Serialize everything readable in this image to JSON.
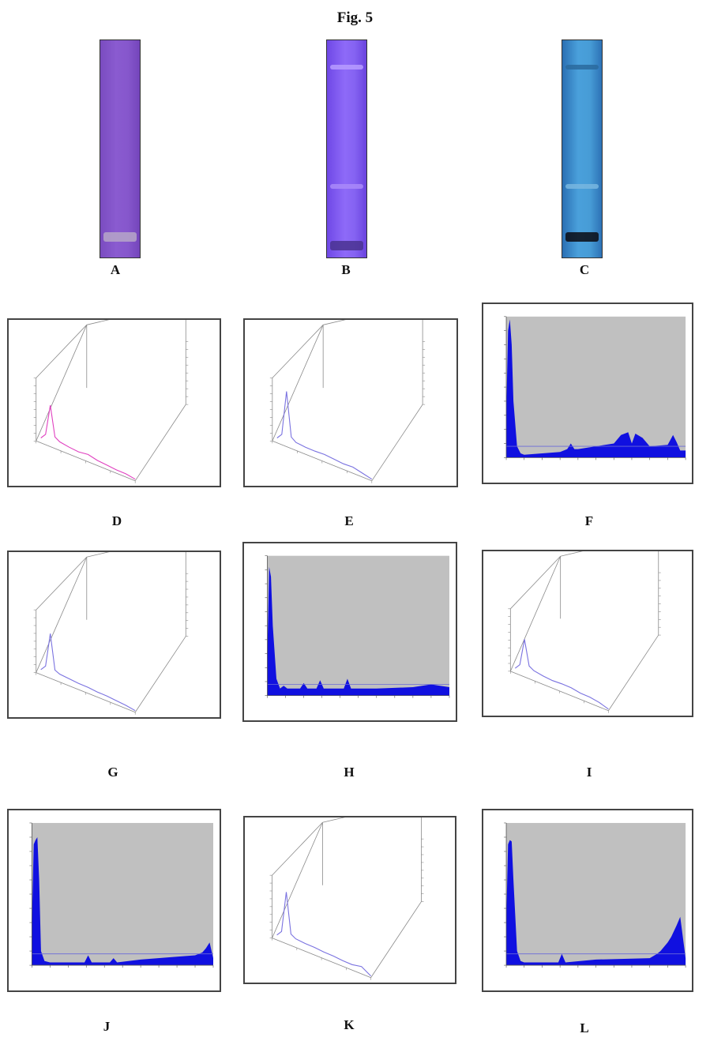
{
  "figure_title": "Fig. 5",
  "plates": [
    {
      "id": "A",
      "label": "A",
      "background": "#8657cc",
      "bands": [
        {
          "y": 0.9,
          "color": "#b6a6c8"
        }
      ]
    },
    {
      "id": "B",
      "label": "B",
      "background": "#8563f2",
      "bands": [
        {
          "y": 0.13,
          "color": "#b79cff"
        },
        {
          "y": 0.68,
          "color": "#a98af9"
        },
        {
          "y": 0.94,
          "color": "#4a3290"
        }
      ]
    },
    {
      "id": "C",
      "label": "C",
      "background": "#479cd6",
      "bands": [
        {
          "y": 0.13,
          "color": "#2a6a9e"
        },
        {
          "y": 0.68,
          "color": "#78b6df"
        },
        {
          "y": 0.9,
          "color": "#0b0b12"
        }
      ]
    }
  ],
  "panel_labels": {
    "D": "D",
    "E": "E",
    "F": "F",
    "G": "G",
    "H": "H",
    "I": "I",
    "J": "J",
    "K": "K",
    "L": "L"
  },
  "colors": {
    "trace_magenta": "#e040c0",
    "trace_blue": "#7a72e0",
    "peak_fill": "#1010e0",
    "chart_background": "#c0c0c0"
  },
  "chart_data": [
    {
      "panel": "D",
      "type": "line",
      "style": "3d-scan",
      "series": [
        {
          "color": "#e040c0",
          "x": [
            0.0,
            0.05,
            0.1,
            0.15,
            0.2,
            0.3,
            0.4,
            0.5,
            0.6,
            0.7,
            0.8,
            0.9,
            1.0
          ],
          "values": [
            0.02,
            0.1,
            0.55,
            0.12,
            0.08,
            0.06,
            0.05,
            0.07,
            0.04,
            0.03,
            0.02,
            0.02,
            0.0
          ]
        }
      ]
    },
    {
      "panel": "E",
      "type": "line",
      "style": "3d-scan",
      "series": [
        {
          "color": "#7a72e0",
          "x": [
            0.0,
            0.05,
            0.1,
            0.15,
            0.2,
            0.3,
            0.4,
            0.5,
            0.6,
            0.7,
            0.8,
            0.9,
            1.0
          ],
          "values": [
            0.02,
            0.1,
            0.75,
            0.12,
            0.07,
            0.06,
            0.06,
            0.07,
            0.06,
            0.05,
            0.06,
            0.03,
            0.0
          ]
        }
      ]
    },
    {
      "panel": "F",
      "type": "area",
      "style": "densitogram",
      "series": [
        {
          "x": [
            0.0,
            0.01,
            0.02,
            0.03,
            0.04,
            0.06,
            0.08,
            0.1,
            0.3,
            0.34,
            0.36,
            0.38,
            0.4,
            0.6,
            0.64,
            0.68,
            0.7,
            0.72,
            0.76,
            0.8,
            0.9,
            0.93,
            0.95,
            0.97,
            1.0
          ],
          "values": [
            0.3,
            0.9,
            0.98,
            0.8,
            0.4,
            0.08,
            0.03,
            0.02,
            0.04,
            0.06,
            0.1,
            0.06,
            0.06,
            0.1,
            0.16,
            0.18,
            0.1,
            0.17,
            0.14,
            0.08,
            0.09,
            0.16,
            0.11,
            0.05,
            0.05
          ]
        }
      ]
    },
    {
      "panel": "G",
      "type": "line",
      "style": "3d-scan",
      "series": [
        {
          "color": "#7a72e0",
          "x": [
            0.0,
            0.05,
            0.1,
            0.15,
            0.2,
            0.3,
            0.4,
            0.5,
            0.6,
            0.7,
            0.8,
            0.9,
            1.0
          ],
          "values": [
            0.02,
            0.1,
            0.6,
            0.1,
            0.07,
            0.06,
            0.05,
            0.05,
            0.04,
            0.04,
            0.03,
            0.02,
            0.0
          ]
        }
      ]
    },
    {
      "panel": "H",
      "type": "area",
      "style": "densitogram",
      "series": [
        {
          "x": [
            0.0,
            0.01,
            0.02,
            0.03,
            0.05,
            0.07,
            0.09,
            0.11,
            0.13,
            0.18,
            0.2,
            0.22,
            0.27,
            0.29,
            0.31,
            0.42,
            0.44,
            0.46,
            0.6,
            0.8,
            0.9,
            0.95,
            1.0
          ],
          "values": [
            0.3,
            0.92,
            0.85,
            0.5,
            0.12,
            0.05,
            0.07,
            0.05,
            0.05,
            0.05,
            0.09,
            0.05,
            0.05,
            0.11,
            0.05,
            0.05,
            0.12,
            0.05,
            0.05,
            0.06,
            0.08,
            0.07,
            0.06
          ]
        }
      ]
    },
    {
      "panel": "I",
      "type": "line",
      "style": "3d-scan",
      "series": [
        {
          "color": "#7a72e0",
          "x": [
            0.0,
            0.05,
            0.1,
            0.15,
            0.2,
            0.3,
            0.4,
            0.5,
            0.6,
            0.7,
            0.8,
            0.9,
            1.0
          ],
          "values": [
            0.02,
            0.1,
            0.5,
            0.14,
            0.1,
            0.08,
            0.07,
            0.08,
            0.08,
            0.06,
            0.06,
            0.04,
            0.0
          ]
        }
      ]
    },
    {
      "panel": "J",
      "type": "area",
      "style": "densitogram",
      "series": [
        {
          "x": [
            0.0,
            0.01,
            0.02,
            0.03,
            0.04,
            0.05,
            0.07,
            0.1,
            0.29,
            0.31,
            0.33,
            0.43,
            0.45,
            0.47,
            0.6,
            0.8,
            0.9,
            0.94,
            0.96,
            0.98,
            1.0
          ],
          "values": [
            0.3,
            0.85,
            0.88,
            0.9,
            0.6,
            0.1,
            0.03,
            0.02,
            0.02,
            0.07,
            0.02,
            0.02,
            0.05,
            0.02,
            0.04,
            0.06,
            0.07,
            0.09,
            0.12,
            0.16,
            0.05
          ]
        }
      ]
    },
    {
      "panel": "K",
      "type": "line",
      "style": "3d-scan",
      "series": [
        {
          "color": "#7a72e0",
          "x": [
            0.0,
            0.05,
            0.1,
            0.15,
            0.2,
            0.3,
            0.4,
            0.5,
            0.6,
            0.7,
            0.8,
            0.9,
            1.0
          ],
          "values": [
            0.02,
            0.1,
            0.7,
            0.12,
            0.08,
            0.07,
            0.07,
            0.06,
            0.06,
            0.05,
            0.05,
            0.08,
            0.0
          ]
        }
      ]
    },
    {
      "panel": "L",
      "type": "area",
      "style": "densitogram",
      "series": [
        {
          "x": [
            0.0,
            0.01,
            0.02,
            0.03,
            0.04,
            0.06,
            0.08,
            0.1,
            0.29,
            0.31,
            0.33,
            0.5,
            0.8,
            0.84,
            0.86,
            0.88,
            0.9,
            0.92,
            0.95,
            0.97,
            1.0
          ],
          "values": [
            0.3,
            0.85,
            0.88,
            0.87,
            0.6,
            0.1,
            0.03,
            0.02,
            0.02,
            0.08,
            0.02,
            0.04,
            0.05,
            0.08,
            0.1,
            0.13,
            0.16,
            0.2,
            0.28,
            0.34,
            0.05
          ]
        }
      ]
    }
  ]
}
